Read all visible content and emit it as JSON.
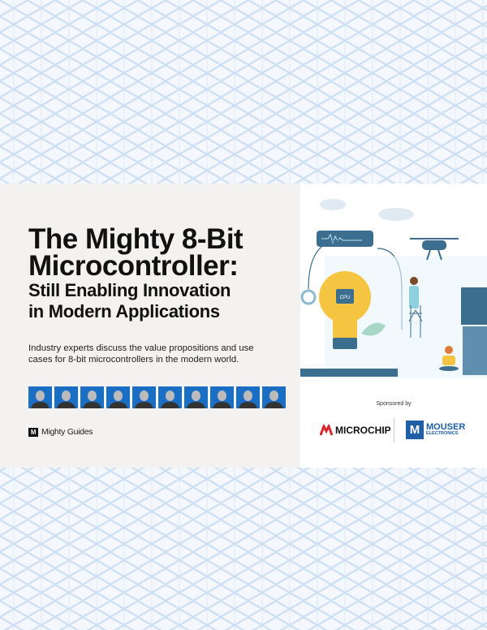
{
  "title": {
    "line1": "The Mighty 8-Bit",
    "line2": "Microcontroller:",
    "sub1": "Still Enabling Innovation",
    "sub2": "in Modern Applications"
  },
  "description": "Industry experts discuss the value propositions and use cases for 8-bit microcontrollers in the modern world.",
  "expert_count": 10,
  "publisher": {
    "mark": "M",
    "name": "Mighty Guides"
  },
  "illustration": {
    "chip_label": "CPU"
  },
  "sponsor": {
    "label": "Sponsored by",
    "microchip": "MICROCHIP",
    "mouser": "MOUSER",
    "mouser_sub": "ELECTRONICS",
    "mouser_mark": "M"
  },
  "colors": {
    "accent": "#1a6fc4",
    "panel": "#f3f2f0",
    "bulb": "#f5c542",
    "illustration_blue": "#3c6f8f"
  }
}
